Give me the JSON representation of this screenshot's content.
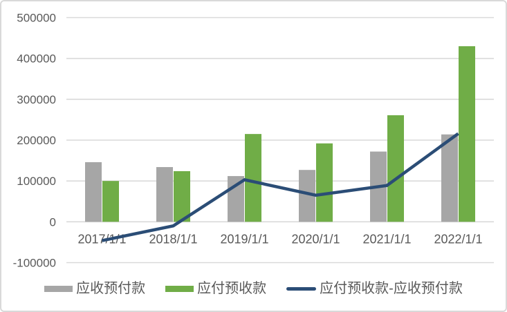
{
  "chart_data": {
    "type": "combo-bar-line",
    "categories": [
      "2017/1/1",
      "2018/1/1",
      "2019/1/1",
      "2020/1/1",
      "2021/1/1",
      "2022/1/1"
    ],
    "series": [
      {
        "name": "应收预付款",
        "type": "bar",
        "color": "#a6a6a6",
        "values": [
          146000,
          134000,
          112000,
          127000,
          172000,
          214000
        ]
      },
      {
        "name": "应付预收款",
        "type": "bar",
        "color": "#70ad47",
        "values": [
          100000,
          124000,
          215000,
          192000,
          261000,
          430000
        ]
      },
      {
        "name": "应付预收款-应收预付款",
        "type": "line",
        "color": "#2b4d76",
        "values": [
          -46000,
          -10000,
          103000,
          65000,
          89000,
          216000
        ]
      }
    ],
    "title": "",
    "xlabel": "",
    "ylabel": "",
    "ylim": [
      -100000,
      500000
    ],
    "ytick_step": 100000,
    "ytick_labels": [
      "-100000",
      "0",
      "100000",
      "200000",
      "300000",
      "400000",
      "500000"
    ],
    "grid": true,
    "legend_position": "bottom",
    "gridline_color": "#d9d9d9",
    "axis_label_color": "#595959",
    "background_color": "#ffffff",
    "border_color": "#d9d9d9"
  }
}
